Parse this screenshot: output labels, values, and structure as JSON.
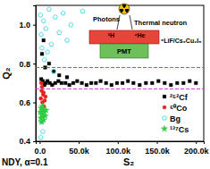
{
  "chart_data": {
    "type": "scatter",
    "x_label": "S₂",
    "y_label": "Q₂",
    "xlim": [
      -5000,
      210000
    ],
    "ylim": [
      0.4,
      1.1
    ],
    "xticks": [
      {
        "value": 0,
        "label": "0.0"
      },
      {
        "value": 50000,
        "label": "50.0k"
      },
      {
        "value": 100000,
        "label": "100.0k"
      },
      {
        "value": 150000,
        "label": "150.0k"
      },
      {
        "value": 200000,
        "label": "200.0k"
      }
    ],
    "yticks": [
      0.4,
      0.6,
      0.8,
      {
        "value": 1,
        "label": "1.0"
      }
    ],
    "legend": "lower right",
    "hlines": [
      0.78,
      0.67
    ],
    "annotations": [
      "NDY, α=0.1",
      "Photons",
      "Thermal neutron",
      "³H",
      "⁴He",
      "⁶LiF/Cs₃Cu₂I₅",
      "PMT"
    ],
    "series": [
      {
        "name": "²⁵²Cf",
        "color": "#000000",
        "marker": "square",
        "x": [
          2000,
          4000,
          6000,
          8000,
          10000,
          13000,
          16000,
          20000,
          24000,
          28000,
          33000,
          38000,
          43000,
          48000,
          54000,
          60000,
          66000,
          72000,
          78000,
          85000,
          92000,
          99000,
          106000,
          113000,
          120000,
          128000,
          136000,
          144000,
          152000,
          160000,
          168000,
          176000,
          184000,
          192000,
          200000,
          3000,
          5000,
          7000,
          12000,
          18000,
          25000,
          35000
        ],
        "values": [
          0.72,
          0.71,
          0.69,
          0.7,
          0.71,
          0.7,
          0.69,
          0.7,
          0.71,
          0.7,
          0.7,
          0.69,
          0.7,
          0.71,
          0.7,
          0.69,
          0.7,
          0.7,
          0.71,
          0.7,
          0.69,
          0.7,
          0.7,
          0.71,
          0.7,
          0.69,
          0.7,
          0.7,
          0.71,
          0.7,
          0.69,
          0.7,
          0.7,
          0.71,
          0.7,
          0.85,
          0.92,
          0.78,
          0.8,
          0.76,
          0.74,
          0.73
        ]
      },
      {
        "name": "⁶⁰Co",
        "color": "#e8211d",
        "marker": "circle",
        "x": [
          1500,
          2500,
          3500,
          4500,
          5500,
          6500,
          3000,
          2000,
          5000,
          7500
        ],
        "values": [
          0.62,
          0.66,
          0.6,
          0.64,
          0.58,
          0.61,
          0.68,
          0.7,
          0.65,
          0.63
        ]
      },
      {
        "name": "Bg",
        "color": "#34d3e0",
        "marker": "pentagon",
        "x": [
          1000,
          2000,
          3000,
          5000,
          8000,
          12000,
          15000,
          20000,
          25000,
          30000,
          40000,
          55000,
          2500,
          4000,
          6000,
          10000,
          18000,
          35000,
          1500,
          3500
        ],
        "values": [
          1.05,
          0.95,
          0.88,
          1.02,
          0.98,
          1.08,
          0.9,
          1.04,
          0.96,
          1.06,
          1.0,
          1.07,
          0.5,
          0.45,
          0.82,
          0.86,
          0.76,
          0.92,
          0.42,
          0.55
        ]
      },
      {
        "name": "¹³⁷Cs",
        "color": "#2ecc40",
        "marker": "star",
        "x": [
          1000,
          1500,
          2000,
          2500,
          3000,
          3500,
          4000,
          4500,
          5000,
          6000,
          7000,
          8000
        ],
        "values": [
          0.55,
          0.52,
          0.57,
          0.5,
          0.54,
          0.58,
          0.53,
          0.56,
          0.51,
          0.55,
          0.53,
          0.56
        ]
      }
    ]
  }
}
